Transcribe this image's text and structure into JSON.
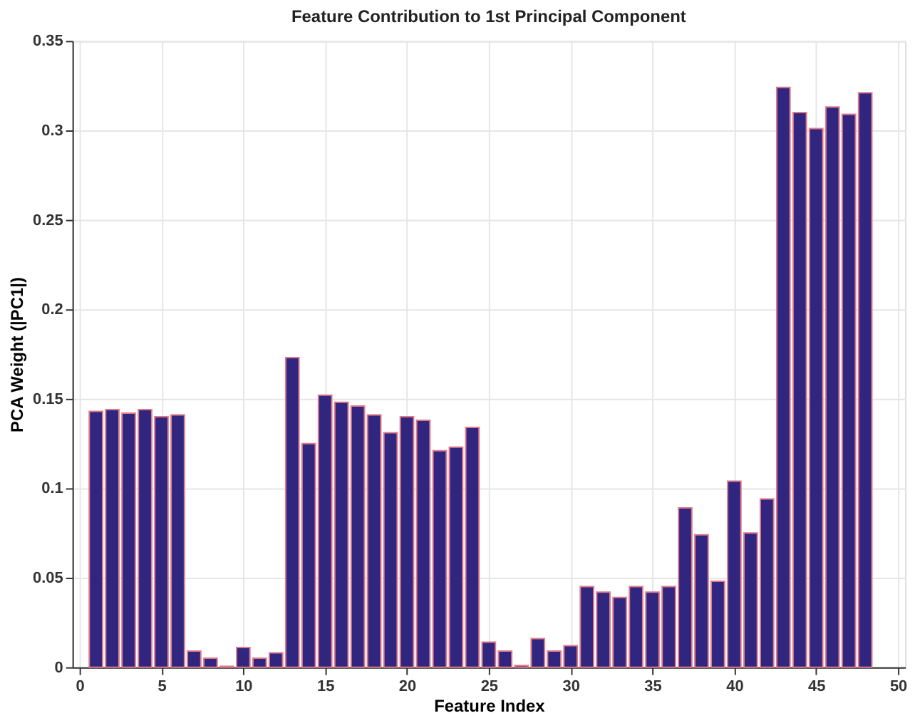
{
  "chart_data": {
    "type": "bar",
    "title": "Feature Contribution to 1st Principal Component",
    "xlabel": "Feature Index",
    "ylabel": "PCA Weight (|PC1|)",
    "x": [
      1,
      2,
      3,
      4,
      5,
      6,
      7,
      8,
      9,
      10,
      11,
      12,
      13,
      14,
      15,
      16,
      17,
      18,
      19,
      20,
      21,
      22,
      23,
      24,
      25,
      26,
      27,
      28,
      29,
      30,
      31,
      32,
      33,
      34,
      35,
      36,
      37,
      38,
      39,
      40,
      41,
      42,
      43,
      44,
      45,
      46,
      47,
      48
    ],
    "values": [
      0.143,
      0.144,
      0.142,
      0.144,
      0.14,
      0.141,
      0.009,
      0.005,
      0.0005,
      0.011,
      0.005,
      0.008,
      0.173,
      0.125,
      0.152,
      0.148,
      0.146,
      0.141,
      0.131,
      0.14,
      0.138,
      0.121,
      0.123,
      0.134,
      0.014,
      0.009,
      0.001,
      0.016,
      0.009,
      0.012,
      0.045,
      0.042,
      0.039,
      0.045,
      0.042,
      0.045,
      0.089,
      0.074,
      0.048,
      0.104,
      0.075,
      0.094,
      0.324,
      0.31,
      0.301,
      0.313,
      0.309,
      0.321
    ],
    "color": "#30257f",
    "xlim": [
      0,
      50
    ],
    "xticks": [
      0,
      5,
      10,
      15,
      20,
      25,
      30,
      35,
      40,
      45,
      50
    ],
    "ylim": [
      0,
      0.35
    ],
    "yticks": [
      0,
      0.05,
      0.1,
      0.15,
      0.2,
      0.25,
      0.3,
      0.35
    ],
    "grid": true
  }
}
